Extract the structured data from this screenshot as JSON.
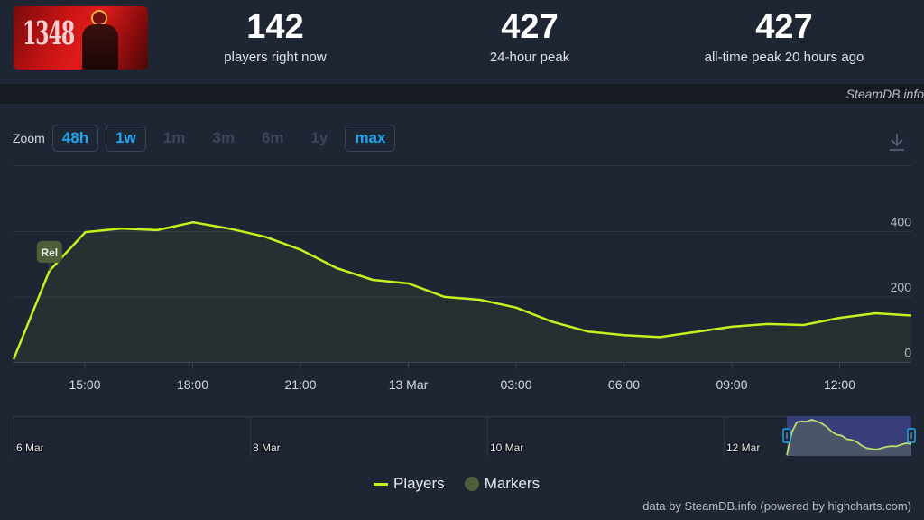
{
  "header": {
    "game_image_alt": "1348 Ex Voto",
    "game_logo_text": "1348",
    "stats": [
      {
        "value": "142",
        "label": "players right now"
      },
      {
        "value": "427",
        "label": "24-hour peak"
      },
      {
        "value": "427",
        "label": "all-time peak 20 hours ago"
      }
    ],
    "credit": "SteamDB.info"
  },
  "toolbar": {
    "zoom_label": "Zoom",
    "zoom_options": [
      {
        "label": "48h",
        "active": true
      },
      {
        "label": "1w",
        "active": true
      },
      {
        "label": "1m",
        "active": false
      },
      {
        "label": "3m",
        "active": false
      },
      {
        "label": "6m",
        "active": false
      },
      {
        "label": "1y",
        "active": false
      },
      {
        "label": "max",
        "active": true
      }
    ],
    "download_icon": "download-icon"
  },
  "legend": {
    "players": "Players",
    "markers": "Markers"
  },
  "footer": "data by SteamDB.info (powered by highcharts.com)",
  "colors": {
    "line": "#c6f01e",
    "accent": "#1ea7f0",
    "marker": "#4d5e3a",
    "background": "#1e2533"
  },
  "chart_data": {
    "type": "line",
    "title": "",
    "xlabel": "",
    "ylabel": "Players",
    "ylim": [
      0,
      500
    ],
    "yticks": [
      0,
      200,
      400
    ],
    "xtick_labels": [
      "15:00",
      "18:00",
      "21:00",
      "13 Mar",
      "03:00",
      "06:00",
      "09:00",
      "12:00"
    ],
    "x": [
      "12 Mar 13:00",
      "14:00",
      "15:00",
      "16:00",
      "17:00",
      "18:00",
      "19:00",
      "20:00",
      "21:00",
      "22:00",
      "23:00",
      "13 Mar 00:00",
      "01:00",
      "02:00",
      "03:00",
      "04:00",
      "05:00",
      "06:00",
      "07:00",
      "08:00",
      "09:00",
      "10:00",
      "11:00",
      "12:00",
      "13:00",
      "13:55"
    ],
    "series": [
      {
        "name": "Players",
        "values": [
          8,
          279,
          397,
          408,
          403,
          427,
          408,
          383,
          343,
          287,
          251,
          240,
          199,
          190,
          166,
          123,
          93,
          82,
          76,
          92,
          108,
          116,
          113,
          135,
          149,
          142
        ]
      }
    ],
    "annotations": [
      {
        "label": "Rel",
        "x": "14:00",
        "meaning": "Release marker"
      }
    ],
    "navigator": {
      "labels": [
        "6 Mar",
        "8 Mar",
        "10 Mar",
        "12 Mar"
      ],
      "selected_range": [
        "12 Mar 13:00",
        "13 Mar 13:55"
      ]
    },
    "legend_position": "bottom"
  }
}
